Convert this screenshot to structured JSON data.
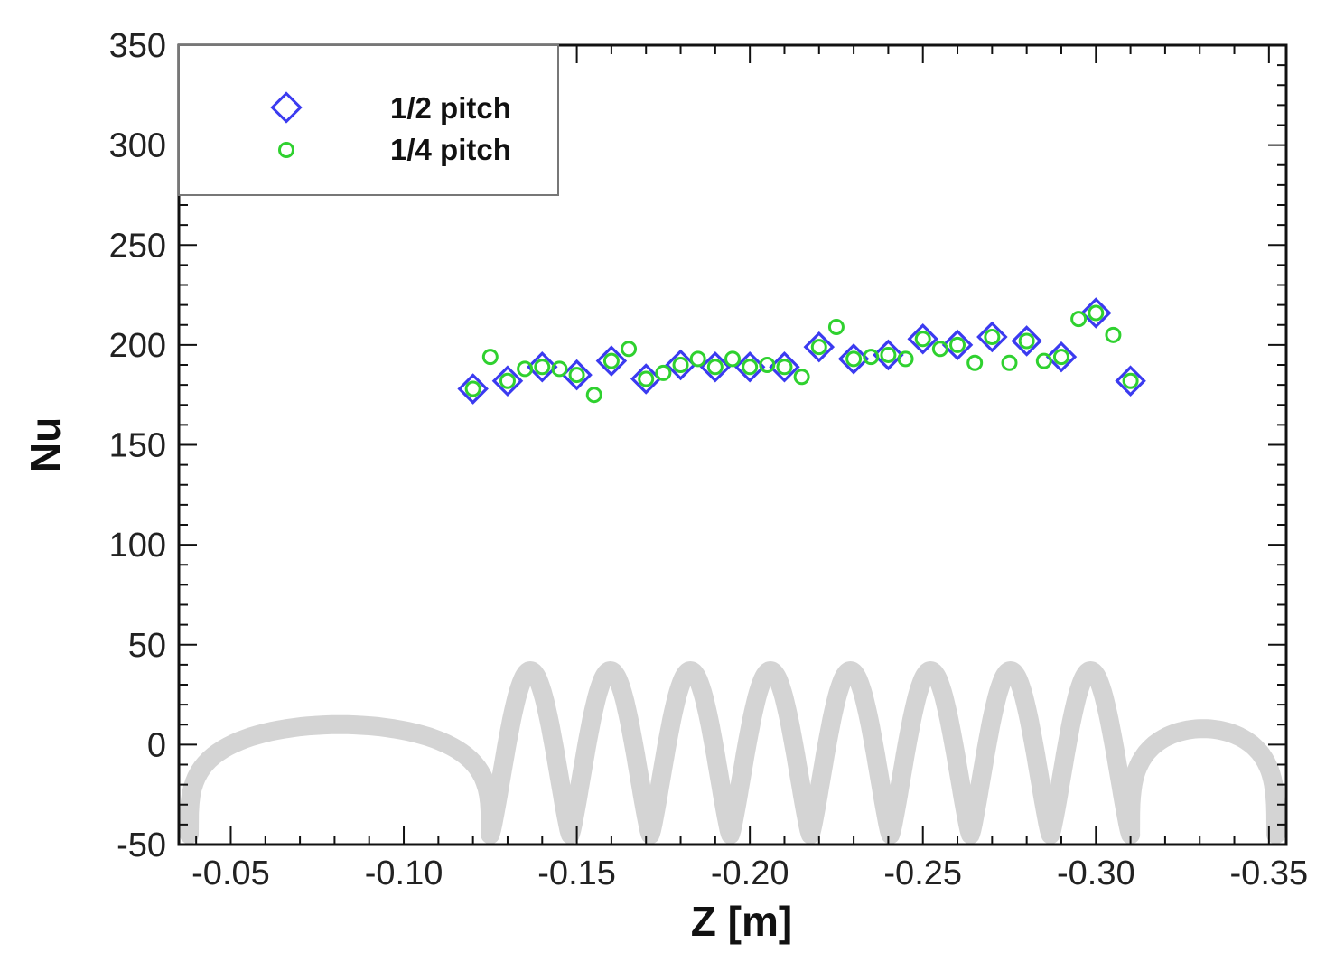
{
  "chart_data": {
    "type": "scatter",
    "title": "",
    "xlabel": "Z [m]",
    "ylabel": "Nu",
    "xlim": [
      -0.035,
      -0.355
    ],
    "ylim": [
      -50,
      350
    ],
    "x_ticks": [
      -0.05,
      -0.1,
      -0.15,
      -0.2,
      -0.25,
      -0.3,
      -0.35
    ],
    "x_tick_labels": [
      "-0.05",
      "-0.10",
      "-0.15",
      "-0.20",
      "-0.25",
      "-0.30",
      "-0.35"
    ],
    "y_ticks": [
      -50,
      0,
      50,
      100,
      150,
      200,
      250,
      300,
      350
    ],
    "y_tick_labels": [
      "-50",
      "0",
      "50",
      "100",
      "150",
      "200",
      "250",
      "300",
      "350"
    ],
    "legend_position": "top-left",
    "series": [
      {
        "name": "1/2 pitch",
        "marker": "diamond",
        "color": "#3b3bf0",
        "x": [
          -0.12,
          -0.13,
          -0.14,
          -0.15,
          -0.16,
          -0.17,
          -0.18,
          -0.19,
          -0.2,
          -0.21,
          -0.22,
          -0.23,
          -0.24,
          -0.25,
          -0.26,
          -0.27,
          -0.28,
          -0.29,
          -0.3,
          -0.31
        ],
        "y": [
          178,
          182,
          189,
          185,
          192,
          183,
          190,
          189,
          189,
          189,
          199,
          193,
          195,
          203,
          200,
          204,
          202,
          194,
          216,
          182
        ]
      },
      {
        "name": "1/4 pitch",
        "marker": "circle",
        "color": "#2fd12f",
        "x": [
          -0.12,
          -0.125,
          -0.13,
          -0.135,
          -0.14,
          -0.145,
          -0.15,
          -0.155,
          -0.16,
          -0.165,
          -0.17,
          -0.175,
          -0.18,
          -0.185,
          -0.19,
          -0.195,
          -0.2,
          -0.205,
          -0.21,
          -0.215,
          -0.22,
          -0.225,
          -0.23,
          -0.235,
          -0.24,
          -0.245,
          -0.25,
          -0.255,
          -0.26,
          -0.265,
          -0.27,
          -0.275,
          -0.28,
          -0.285,
          -0.29,
          -0.295,
          -0.3,
          -0.305,
          -0.31
        ],
        "y": [
          178,
          194,
          182,
          188,
          189,
          188,
          185,
          175,
          192,
          198,
          183,
          186,
          190,
          193,
          189,
          193,
          189,
          190,
          189,
          184,
          199,
          209,
          193,
          194,
          195,
          193,
          203,
          198,
          200,
          191,
          204,
          191,
          202,
          192,
          194,
          213,
          216,
          205,
          182
        ]
      }
    ],
    "background_shape": {
      "description_color": "#d4d4d4",
      "left_arc_x": [
        -0.038,
        -0.125
      ],
      "coil_x": [
        -0.125,
        -0.31
      ],
      "coil_turns": 8,
      "coil_y_range": [
        -45,
        37
      ],
      "right_arc_x": [
        -0.31,
        -0.352
      ]
    }
  }
}
